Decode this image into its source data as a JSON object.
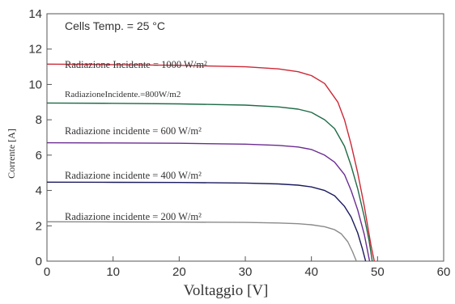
{
  "chart_data": {
    "type": "line",
    "xlabel": "Voltaggio [V]",
    "ylabel": "Corrente [A]",
    "xlim": [
      0,
      60
    ],
    "ylim": [
      0,
      14
    ],
    "xticks": [
      0,
      10,
      20,
      30,
      40,
      50,
      60
    ],
    "yticks": [
      0,
      2,
      4,
      6,
      8,
      10,
      12,
      14
    ],
    "grid": false,
    "annotations": [
      {
        "text": "Cells Temp. = 25 °C"
      },
      {
        "text": "Radiazione Incidente = 1000 W/m²"
      },
      {
        "text": "RadiazioneIncidente.=800W/m2"
      },
      {
        "text": "Radiazione incidente = 600 W/m²"
      },
      {
        "text": "Radiazione incidente = 400 W/m²"
      },
      {
        "text": "Radiazione incidente = 200 W/m²"
      }
    ],
    "series": [
      {
        "color": "#cc2936",
        "x": [
          0,
          10,
          20,
          30,
          35,
          38,
          40,
          42,
          44,
          45,
          46,
          47,
          48,
          48.5,
          49,
          49.5
        ],
        "y": [
          11.15,
          11.12,
          11.08,
          11.0,
          10.88,
          10.72,
          10.5,
          10.05,
          9.0,
          8.0,
          6.6,
          5.0,
          3.1,
          2.0,
          0.9,
          0
        ]
      },
      {
        "color": "#1f6b47",
        "x": [
          0,
          10,
          20,
          30,
          35,
          38,
          40,
          42,
          43.5,
          45,
          46,
          47,
          48,
          48.7,
          49.2
        ],
        "y": [
          8.95,
          8.93,
          8.9,
          8.83,
          8.73,
          8.6,
          8.42,
          8.0,
          7.5,
          6.5,
          5.4,
          4.1,
          2.5,
          1.2,
          0
        ]
      },
      {
        "color": "#6a2c91",
        "x": [
          0,
          10,
          20,
          30,
          35,
          38,
          40,
          42,
          43.5,
          45,
          46,
          47,
          48,
          48.8
        ],
        "y": [
          6.7,
          6.69,
          6.67,
          6.62,
          6.55,
          6.46,
          6.32,
          6.0,
          5.6,
          4.9,
          4.0,
          2.9,
          1.5,
          0
        ]
      },
      {
        "color": "#1a1a5e",
        "x": [
          0,
          10,
          20,
          30,
          35,
          38,
          40,
          42,
          43.5,
          45,
          46,
          47,
          47.7,
          48.2
        ],
        "y": [
          4.47,
          4.46,
          4.45,
          4.42,
          4.37,
          4.3,
          4.2,
          4.0,
          3.7,
          3.1,
          2.5,
          1.6,
          0.7,
          0
        ]
      },
      {
        "color": "#8a8a8a",
        "x": [
          0,
          10,
          20,
          30,
          35,
          38,
          40,
          42,
          43.5,
          44.5,
          45.5,
          46.2,
          46.8
        ],
        "y": [
          2.23,
          2.22,
          2.21,
          2.19,
          2.16,
          2.12,
          2.06,
          1.95,
          1.78,
          1.55,
          1.1,
          0.55,
          0
        ]
      }
    ]
  }
}
